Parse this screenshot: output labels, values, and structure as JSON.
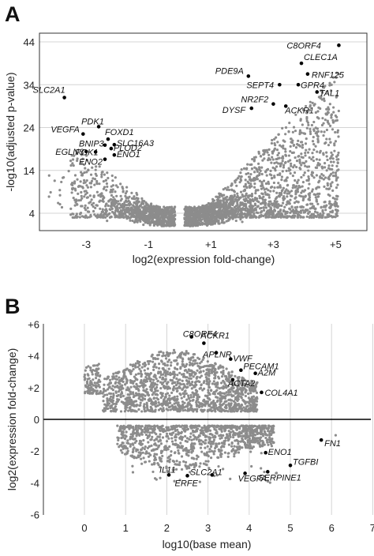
{
  "chart_data": [
    {
      "panel": "A",
      "type": "scatter",
      "xlabel": "log2(expression fold-change)",
      "ylabel": "-log10(adjusted p-value)",
      "xlim": [
        -4.5,
        6
      ],
      "ylim": [
        0,
        44
      ],
      "xticks": [
        "-3",
        "-1",
        "+1",
        "+3",
        "+5"
      ],
      "xtick_values": [
        -3,
        -1,
        1,
        3,
        5
      ],
      "yticks": [
        "4",
        "14",
        "24",
        "34",
        "44"
      ],
      "ytick_values": [
        4,
        14,
        24,
        34,
        44
      ],
      "grid": "horizontal",
      "labeled_points": [
        {
          "name": "C8ORF4",
          "x": 5.1,
          "y": 43.2
        },
        {
          "name": "CLEC1A",
          "x": 3.9,
          "y": 39.0
        },
        {
          "name": "PDE9A",
          "x": 2.2,
          "y": 36.0
        },
        {
          "name": "RNF125",
          "x": 4.1,
          "y": 36.5
        },
        {
          "name": "SEPT4",
          "x": 3.2,
          "y": 34.0
        },
        {
          "name": "GPR4",
          "x": 3.8,
          "y": 34.0
        },
        {
          "name": "TAL1",
          "x": 4.4,
          "y": 32.3
        },
        {
          "name": "NR2F2",
          "x": 3.0,
          "y": 29.5
        },
        {
          "name": "ACKR1",
          "x": 3.4,
          "y": 29.0
        },
        {
          "name": "DYSF",
          "x": 2.3,
          "y": 28.5
        },
        {
          "name": "SLC2A1",
          "x": -3.7,
          "y": 31.0
        },
        {
          "name": "PDK1",
          "x": -2.6,
          "y": 24.2
        },
        {
          "name": "VEGFA",
          "x": -3.1,
          "y": 22.5
        },
        {
          "name": "FOXD1",
          "x": -2.3,
          "y": 21.3
        },
        {
          "name": "SLC16A3",
          "x": -2.1,
          "y": 20.0
        },
        {
          "name": "BNIP3",
          "x": -2.4,
          "y": 19.9
        },
        {
          "name": "PLOD2",
          "x": -2.2,
          "y": 19.1
        },
        {
          "name": "EGLN3",
          "x": -3.0,
          "y": 18.4
        },
        {
          "name": "PGK1",
          "x": -2.7,
          "y": 18.3
        },
        {
          "name": "ENO1",
          "x": -2.1,
          "y": 17.6
        },
        {
          "name": "ENO2",
          "x": -2.4,
          "y": 16.6
        }
      ]
    },
    {
      "panel": "B",
      "type": "scatter",
      "xlabel": "log10(base mean)",
      "ylabel": "log2(expression fold-change)",
      "xlim": [
        -1,
        7
      ],
      "ylim": [
        -6,
        6
      ],
      "xticks": [
        "0",
        "1",
        "2",
        "3",
        "4",
        "5",
        "6",
        "7"
      ],
      "xtick_values": [
        0,
        1,
        2,
        3,
        4,
        5,
        6,
        7
      ],
      "yticks": [
        "+6",
        "+4",
        "+2",
        "0",
        "-2",
        "-4",
        "-6"
      ],
      "ytick_values": [
        6,
        4,
        2,
        0,
        -2,
        -4,
        -6
      ],
      "grid": "vertical",
      "labeled_points": [
        {
          "name": "C8ORF4",
          "x": 2.6,
          "y": 5.2
        },
        {
          "name": "ACKR1",
          "x": 2.9,
          "y": 4.8
        },
        {
          "name": "APLNR",
          "x": 3.2,
          "y": 4.2
        },
        {
          "name": "VWF",
          "x": 3.55,
          "y": 3.8
        },
        {
          "name": "PECAM1",
          "x": 3.8,
          "y": 3.1
        },
        {
          "name": "A2M",
          "x": 4.15,
          "y": 2.9
        },
        {
          "name": "ACTA2",
          "x": 3.6,
          "y": 2.5
        },
        {
          "name": "COL4A1",
          "x": 4.3,
          "y": 1.7
        },
        {
          "name": "FN1",
          "x": 5.75,
          "y": -1.3
        },
        {
          "name": "ENO1",
          "x": 4.4,
          "y": -2.1
        },
        {
          "name": "TGFBI",
          "x": 5.0,
          "y": -2.9
        },
        {
          "name": "SERPINE1",
          "x": 4.45,
          "y": -3.3
        },
        {
          "name": "IL11",
          "x": 2.05,
          "y": -3.5
        },
        {
          "name": "SLC2A1",
          "x": 3.1,
          "y": -3.5
        },
        {
          "name": "VEGFA",
          "x": 3.9,
          "y": -3.4
        },
        {
          "name": "ERFE",
          "x": 2.5,
          "y": -3.55
        }
      ]
    }
  ],
  "panels": {
    "a": {
      "letter": "A"
    },
    "b": {
      "letter": "B"
    }
  },
  "colors": {
    "points": "#8c8c8c",
    "labeled_points": "#000000",
    "grid": "#d4d4d4",
    "axes": "#333333",
    "zero_line": "#000000"
  }
}
